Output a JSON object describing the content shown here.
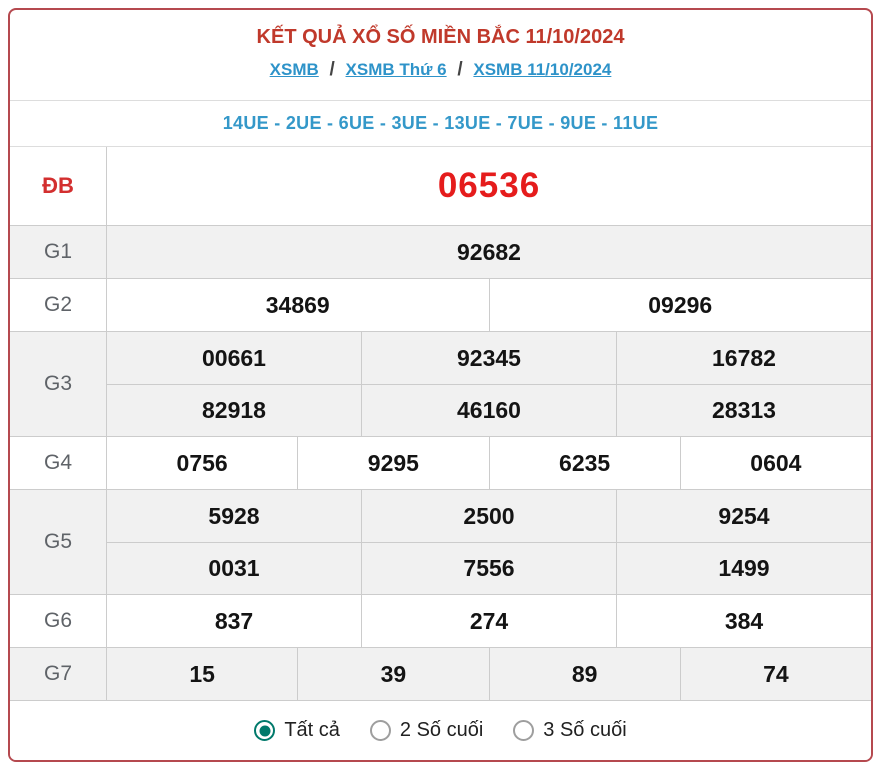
{
  "header": {
    "title": "KẾT QUẢ XỔ SỐ MIỀN BẮC 11/10/2024",
    "breadcrumb": [
      {
        "label": "XSMB"
      },
      {
        "label": "XSMB Thứ 6"
      },
      {
        "label": "XSMB 11/10/2024"
      }
    ],
    "breadcrumb_separator": "/"
  },
  "loto_line": "14UE - 2UE - 6UE - 3UE - 13UE - 7UE - 9UE - 11UE",
  "results": {
    "rows": [
      {
        "label": "ĐB",
        "special": true,
        "cells": [
          [
            "06536"
          ]
        ]
      },
      {
        "label": "G1",
        "special": false,
        "cells": [
          [
            "92682"
          ]
        ]
      },
      {
        "label": "G2",
        "special": false,
        "cells": [
          [
            "34869",
            "09296"
          ]
        ]
      },
      {
        "label": "G3",
        "special": false,
        "cells": [
          [
            "00661",
            "92345",
            "16782"
          ],
          [
            "82918",
            "46160",
            "28313"
          ]
        ]
      },
      {
        "label": "G4",
        "special": false,
        "cells": [
          [
            "0756",
            "9295",
            "6235",
            "0604"
          ]
        ]
      },
      {
        "label": "G5",
        "special": false,
        "cells": [
          [
            "5928",
            "2500",
            "9254"
          ],
          [
            "0031",
            "7556",
            "1499"
          ]
        ]
      },
      {
        "label": "G6",
        "special": false,
        "cells": [
          [
            "837",
            "274",
            "384"
          ]
        ]
      },
      {
        "label": "G7",
        "special": false,
        "cells": [
          [
            "15",
            "39",
            "89",
            "74"
          ]
        ]
      }
    ]
  },
  "footer": {
    "options": [
      {
        "label": "Tất cả",
        "selected": true
      },
      {
        "label": "2 Số cuối",
        "selected": false
      },
      {
        "label": "3 Số cuối",
        "selected": false
      }
    ]
  },
  "colors": {
    "border_red": "#b5494f",
    "title_red": "#c0392b",
    "special_red": "#e51c1c",
    "link_blue": "#2e93c9",
    "radio_teal": "#00796b",
    "shaded_row": "#f1f1f1"
  }
}
